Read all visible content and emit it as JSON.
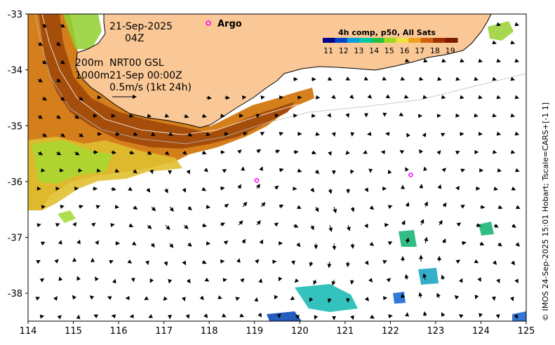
{
  "map": {
    "date": "21-Sep-2025",
    "hour": "04Z",
    "depth_label_1": "200m",
    "product_label": "NRT00 GSL",
    "depth_label_2": "1000m",
    "altimetry_date": "21-Sep 00:00Z",
    "arrow_scale_label": "0.5m/s (1kt 24h)",
    "argo_label": "Argo",
    "credit": "© IMOS 24-Sep-2025 15:01 Hobart; Tscale=CARS+[-1 1]",
    "lon_ticks": [
      "114",
      "115",
      "116",
      "117",
      "118",
      "119",
      "120",
      "121",
      "122",
      "123",
      "124",
      "125"
    ],
    "lat_ticks": [
      "-33",
      "-34",
      "-35",
      "-36",
      "-37",
      "-38"
    ],
    "lon_range": [
      114,
      125
    ],
    "lat_range": [
      -38.5,
      -33
    ]
  },
  "colorbar": {
    "title": "4h comp, p50, All Sats",
    "labels": [
      "11",
      "12",
      "13",
      "14",
      "15",
      "16",
      "17",
      "18",
      "19"
    ],
    "colors": [
      "#00008b",
      "#0044cc",
      "#00a0e0",
      "#00c8a0",
      "#20c040",
      "#a0d820",
      "#f0e040",
      "#f0a020",
      "#d06010",
      "#a03000",
      "#7a1a00"
    ]
  },
  "argo_floats": [
    {
      "lon": 119.05,
      "lat": -35.98
    },
    {
      "lon": 122.45,
      "lat": -35.88
    }
  ],
  "colors": {
    "land": "#fac896",
    "argo": "#ff00ff",
    "frame": "#000000"
  }
}
